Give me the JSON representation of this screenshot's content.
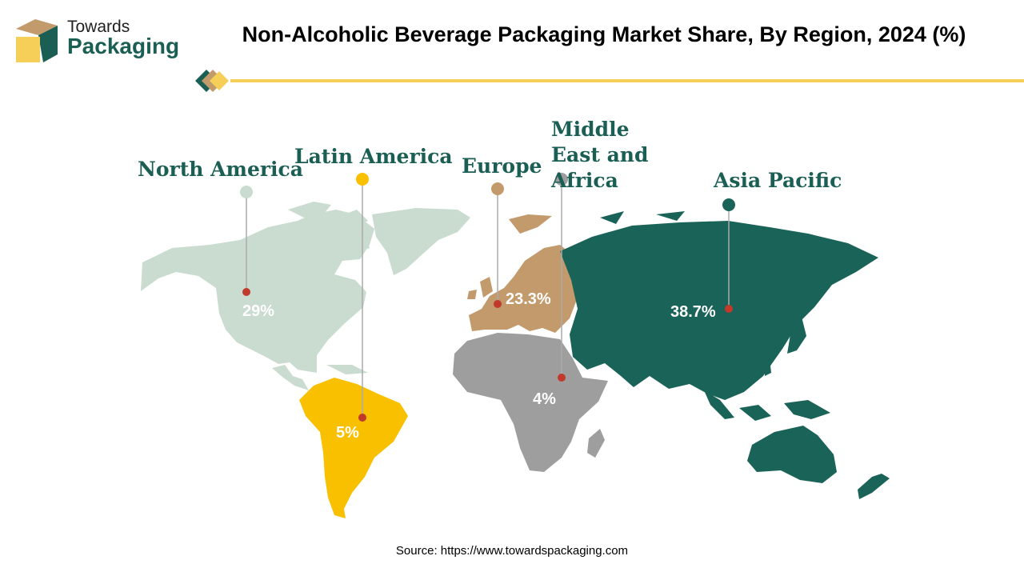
{
  "brand": {
    "line1": "Towards",
    "line2": "Packaging",
    "colors": {
      "green": "#1a5e54",
      "gold": "#f5cf57",
      "tan": "#c39a6b"
    }
  },
  "title": "Non-Alcoholic Beverage Packaging Market Share, By Region, 2024 (%)",
  "chart_data": {
    "type": "map",
    "regions": [
      {
        "name": "North America",
        "share": "29%",
        "color": "#c9dccf"
      },
      {
        "name": "Latin America",
        "share": "5%",
        "color": "#f9c000"
      },
      {
        "name": "Europe",
        "share": "23.3%",
        "color": "#c39a6b"
      },
      {
        "name": "Middle East and Africa",
        "share": "4%",
        "color": "#9e9e9e"
      },
      {
        "name": "Asia Pacific",
        "share": "38.7%",
        "color": "#1a6358"
      }
    ],
    "marker_color": "#c0392b"
  },
  "source": "Source: https://www.towardspackaging.com"
}
